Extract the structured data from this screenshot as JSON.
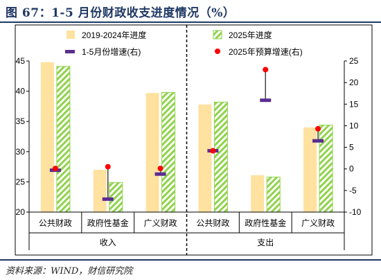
{
  "title": "图 67：1-5 月份财政收支进度情况（%）",
  "source": "资料来源：WIND，财信研究院",
  "colors": {
    "bar_hist": "#ffe1a0",
    "bar_2025": "#8fd34a",
    "marker_growth": "#5b2d90",
    "marker_budget": "#ff0000",
    "stem": "#444444"
  },
  "chart_data": {
    "type": "bar",
    "groups": [
      "收入",
      "支出"
    ],
    "categories": [
      "公共财政",
      "政府性基金",
      "广义财政",
      "公共财政",
      "政府性基金",
      "广义财政"
    ],
    "series": [
      {
        "name": "2019-2024年进度",
        "axis": "left",
        "style": "bar",
        "values": [
          44.8,
          27.0,
          39.7,
          37.8,
          26.1,
          34.0
        ]
      },
      {
        "name": "2025年进度",
        "axis": "left",
        "style": "bar-hatched",
        "values": [
          44.1,
          24.9,
          39.8,
          38.2,
          25.8,
          34.4
        ]
      },
      {
        "name": "1-5月份增速(右)",
        "axis": "right",
        "style": "dash-marker",
        "values": [
          -0.3,
          -7.0,
          -1.2,
          4.2,
          15.9,
          6.5
        ]
      },
      {
        "name": "2025年预算增速(右)",
        "axis": "right",
        "style": "dot-marker",
        "values": [
          0.1,
          0.5,
          0.1,
          4.2,
          23.0,
          9.3
        ]
      }
    ],
    "left_axis": {
      "ylim": [
        20,
        45
      ],
      "ticks": [
        "20",
        "25",
        "30",
        "35",
        "40",
        "45"
      ]
    },
    "right_axis": {
      "ylim": [
        -10,
        25
      ],
      "ticks": [
        "-10",
        "-5",
        "0",
        "5",
        "10",
        "15",
        "20",
        "25"
      ]
    },
    "grid": false,
    "legend": "top"
  }
}
